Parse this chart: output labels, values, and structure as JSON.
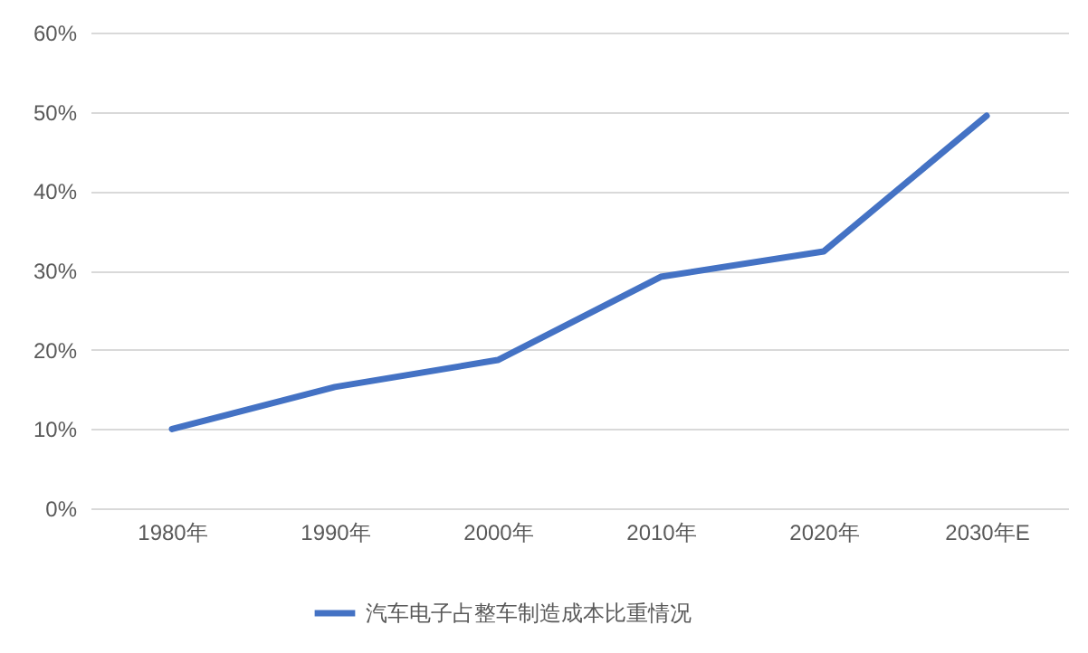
{
  "chart_data": {
    "type": "line",
    "categories": [
      "1980年",
      "1990年",
      "2000年",
      "2010年",
      "2020年",
      "2030年E"
    ],
    "series": [
      {
        "name": "汽车电子占整车制造成本比重情况",
        "color": "#4472c4",
        "values": [
          10,
          15.3,
          18.7,
          29.2,
          32.4,
          49.5
        ]
      }
    ],
    "ylim": [
      0,
      60
    ],
    "yticks": [
      {
        "value": 0,
        "label": "0%"
      },
      {
        "value": 10,
        "label": "10%"
      },
      {
        "value": 20,
        "label": "20%"
      },
      {
        "value": 30,
        "label": "30%"
      },
      {
        "value": 40,
        "label": "40%"
      },
      {
        "value": 50,
        "label": "50%"
      },
      {
        "value": 60,
        "label": "60%"
      }
    ],
    "grid": "y",
    "legend": "bottom",
    "marker": "none",
    "line_style": "solid"
  }
}
